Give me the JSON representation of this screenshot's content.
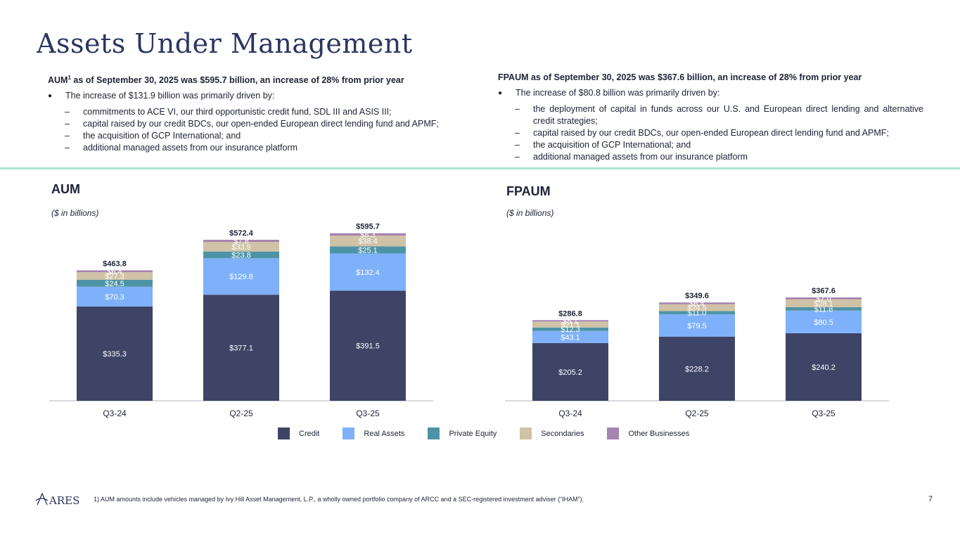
{
  "title": "Assets Under Management",
  "left_text": {
    "heading_pre": "AUM",
    "heading_sup": "1",
    "heading_post": " as of September 30, 2025 was $595.7 billion, an increase of 28% from prior year",
    "bullet": "The increase of $131.9 billion was primarily driven by:",
    "subs": [
      "commitments to ACE VI, our third opportunistic credit fund, SDL III and ASIS III;",
      "capital raised by our credit BDCs, our open-ended European direct lending fund and APMF;",
      "the acquisition of GCP International; and",
      "additional managed assets from our insurance platform"
    ]
  },
  "right_text": {
    "heading": "FPAUM as of September 30, 2025 was $367.6 billion, an increase of 28% from prior year",
    "bullet": "The increase of $80.8 billion was primarily driven by:",
    "subs": [
      "the deployment of capital in funds across our U.S. and European direct lending and alternative credit strategies;",
      "capital raised by our credit BDCs, our open-ended European direct lending fund and APMF;",
      "the acquisition of GCP International; and",
      "additional managed assets from our insurance platform"
    ]
  },
  "dash": "–",
  "colors": {
    "Credit": "#3d4466",
    "Real Assets": "#7eb1f9",
    "Private Equity": "#4e93a5",
    "Secondaries": "#cfc2a6",
    "Other Businesses": "#a683b0"
  },
  "chart_data": [
    {
      "type": "bar",
      "stacked": true,
      "title": "AUM",
      "subtitle": "($ in billions)",
      "categories": [
        "Q3-24",
        "Q2-25",
        "Q3-25"
      ],
      "series": [
        {
          "name": "Credit",
          "values": [
            335.3,
            377.1,
            391.5
          ],
          "labels": [
            "$335.3",
            "$377.1",
            "$391.5"
          ]
        },
        {
          "name": "Real Assets",
          "values": [
            70.3,
            129.8,
            132.4
          ],
          "labels": [
            "$70.3",
            "$129.8",
            "$132.4"
          ]
        },
        {
          "name": "Private Equity",
          "values": [
            24.5,
            23.8,
            25.1
          ],
          "labels": [
            "$24.5",
            "$23.8",
            "$25.1"
          ]
        },
        {
          "name": "Secondaries",
          "values": [
            27.3,
            33.9,
            38.4
          ],
          "labels": [
            "$27.3",
            "$33.9",
            "$38.4"
          ]
        },
        {
          "name": "Other Businesses",
          "values": [
            6.4,
            7.8,
            8.3
          ],
          "labels": [
            "$6.4",
            "$7.8",
            "$8.3"
          ]
        }
      ],
      "totals": [
        "$463.8",
        "$572.4",
        "$595.7"
      ],
      "ylim": [
        0,
        600
      ]
    },
    {
      "type": "bar",
      "stacked": true,
      "title": "FPAUM",
      "subtitle": "($ in billions)",
      "categories": [
        "Q3-24",
        "Q2-25",
        "Q3-25"
      ],
      "series": [
        {
          "name": "Credit",
          "values": [
            205.2,
            228.2,
            240.2
          ],
          "labels": [
            "$205.2",
            "$228.2",
            "$240.2"
          ]
        },
        {
          "name": "Real Assets",
          "values": [
            43.1,
            79.5,
            80.5
          ],
          "labels": [
            "$43.1",
            "$79.5",
            "$80.5"
          ]
        },
        {
          "name": "Private Equity",
          "values": [
            12.3,
            11.0,
            11.8
          ],
          "labels": [
            "$12.3",
            "$11.0",
            "$11.8"
          ]
        },
        {
          "name": "Secondaries",
          "values": [
            21.1,
            24.5,
            28.1
          ],
          "labels": [
            "$21.1",
            "$24.5",
            "$28.1"
          ]
        },
        {
          "name": "Other Businesses",
          "values": [
            5.1,
            6.4,
            7.0
          ],
          "labels": [
            "$5.1",
            "$6.4",
            "$7.0"
          ]
        }
      ],
      "totals": [
        "$286.8",
        "$349.6",
        "$367.6"
      ],
      "ylim": [
        0,
        600
      ]
    }
  ],
  "legend": [
    "Credit",
    "Real Assets",
    "Private Equity",
    "Secondaries",
    "Other Businesses"
  ],
  "logo": "ARES",
  "footnote": "1)  AUM amounts include vehicles managed by Ivy Hill Asset Management, L.P., a wholly owned portfolio company of ARCC and a SEC-registered investment adviser (“IHAM”).",
  "page_number": "7"
}
